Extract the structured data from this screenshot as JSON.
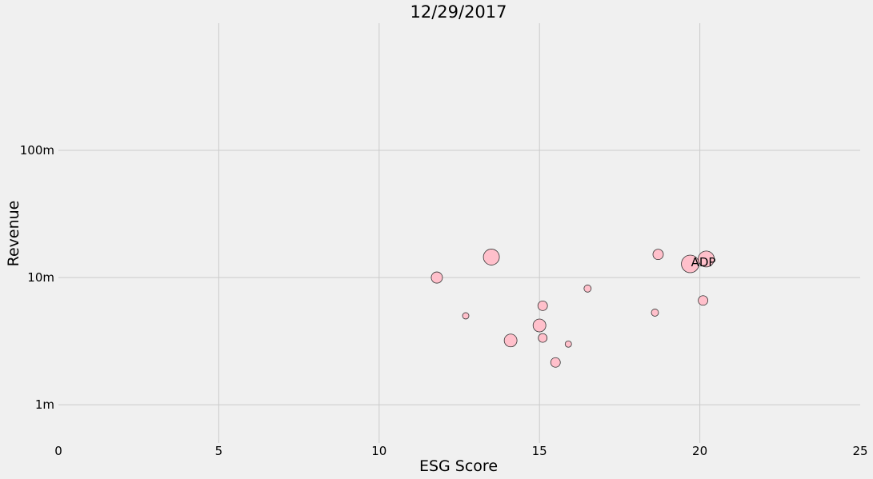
{
  "chart_data": {
    "type": "scatter",
    "title": "12/29/2017",
    "xlabel": "ESG Score",
    "ylabel": "Revenue",
    "xlim": [
      0,
      25
    ],
    "ylim": [
      500000,
      1000000000
    ],
    "yscale": "log",
    "grid": true,
    "x_ticks": [
      {
        "value": 0,
        "label": "0"
      },
      {
        "value": 5,
        "label": "5"
      },
      {
        "value": 10,
        "label": "10"
      },
      {
        "value": 15,
        "label": "15"
      },
      {
        "value": 20,
        "label": "20"
      },
      {
        "value": 25,
        "label": "25"
      }
    ],
    "y_ticks": [
      {
        "value": 1000000,
        "label": "1m"
      },
      {
        "value": 10000000,
        "label": "10m"
      },
      {
        "value": 100000000,
        "label": "100m"
      }
    ],
    "point_color": "#ffc0cb",
    "points": [
      {
        "x": 11.8,
        "y": 10000000,
        "size": 7
      },
      {
        "x": 12.7,
        "y": 5000000,
        "size": 4
      },
      {
        "x": 13.5,
        "y": 14500000,
        "size": 10
      },
      {
        "x": 14.1,
        "y": 3200000,
        "size": 8
      },
      {
        "x": 15.0,
        "y": 4200000,
        "size": 8
      },
      {
        "x": 15.1,
        "y": 6000000,
        "size": 6
      },
      {
        "x": 15.1,
        "y": 3350000,
        "size": 5.5
      },
      {
        "x": 15.5,
        "y": 2150000,
        "size": 6
      },
      {
        "x": 15.9,
        "y": 3000000,
        "size": 4
      },
      {
        "x": 16.5,
        "y": 8200000,
        "size": 4.5
      },
      {
        "x": 18.6,
        "y": 5300000,
        "size": 4.5
      },
      {
        "x": 18.7,
        "y": 15200000,
        "size": 6.5
      },
      {
        "x": 19.7,
        "y": 12800000,
        "size": 11
      },
      {
        "x": 20.1,
        "y": 6600000,
        "size": 6
      },
      {
        "x": 20.2,
        "y": 14000000,
        "size": 10
      }
    ],
    "annotations": [
      {
        "text": "ADP",
        "x": 19.7,
        "y": 13200000
      }
    ]
  }
}
